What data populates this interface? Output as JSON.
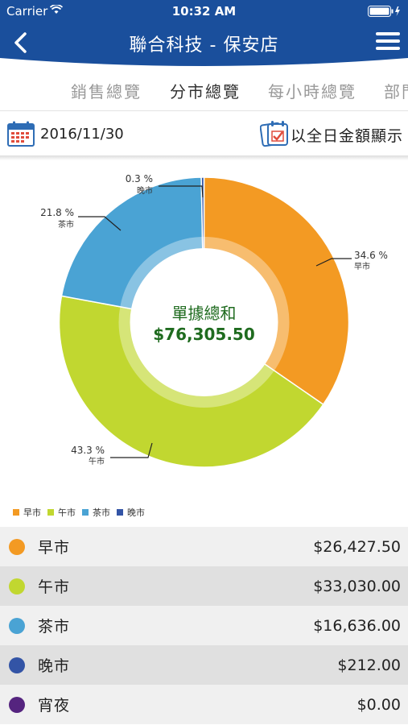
{
  "status_bar": {
    "carrier": "Carrier",
    "time": "10:32 AM"
  },
  "nav": {
    "title": "聯合科技 - 保安店"
  },
  "tabs": [
    {
      "label": "銷售總覽",
      "active": false
    },
    {
      "label": "分市總覽",
      "active": true
    },
    {
      "label": "每小時總覽",
      "active": false
    },
    {
      "label": "部門",
      "active": false
    }
  ],
  "date_bar": {
    "date": "2016/11/30",
    "mode_label": "以全日金額顯示"
  },
  "colors": {
    "header": "#1a4f9c",
    "orange": "#f39a23",
    "green": "#c1d730",
    "blue": "#4aa3d4",
    "navy": "#3354a6",
    "purple": "#55247f",
    "center_text": "#1f6b1f"
  },
  "chart_data": {
    "type": "pie",
    "center_label": "單據總和",
    "center_value": "$76,305.50",
    "slices": [
      {
        "name": "早市",
        "percent": 34.6,
        "label": "34.6 %",
        "color": "#f39a23"
      },
      {
        "name": "午市",
        "percent": 43.3,
        "label": "43.3 %",
        "color": "#c1d730"
      },
      {
        "name": "茶市",
        "percent": 21.8,
        "label": "21.8 %",
        "color": "#4aa3d4"
      },
      {
        "name": "晚市",
        "percent": 0.3,
        "label": "0.3 %",
        "color": "#3354a6"
      }
    ],
    "legend_placement": "bottom-left"
  },
  "list": [
    {
      "label": "早市",
      "value": "$26,427.50",
      "color": "#f39a23"
    },
    {
      "label": "午市",
      "value": "$33,030.00",
      "color": "#c1d730"
    },
    {
      "label": "茶市",
      "value": "$16,636.00",
      "color": "#4aa3d4"
    },
    {
      "label": "晚市",
      "value": "$212.00",
      "color": "#3354a6"
    },
    {
      "label": "宵夜",
      "value": "$0.00",
      "color": "#55247f"
    }
  ]
}
